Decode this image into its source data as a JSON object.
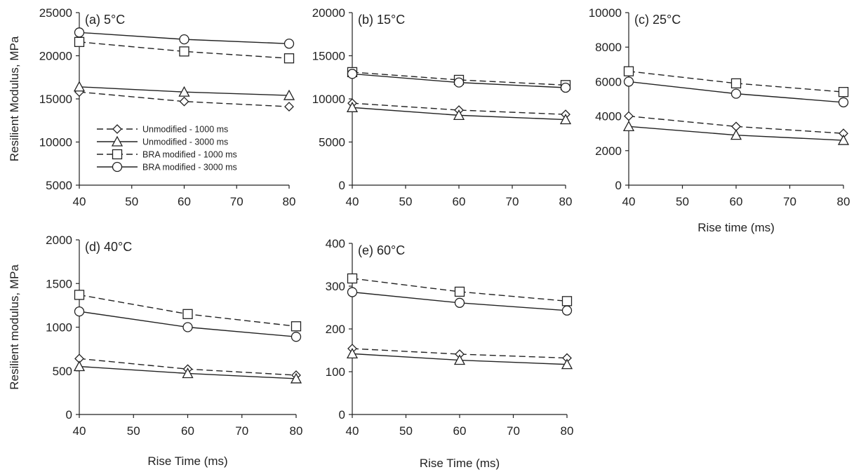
{
  "legend": [
    {
      "name": "Unmodified - 1000 ms",
      "marker": "diamond",
      "dash": "dashed"
    },
    {
      "name": "Unmodified - 3000 ms",
      "marker": "triangle",
      "dash": "solid"
    },
    {
      "name": "BRA modified - 1000 ms",
      "marker": "square",
      "dash": "dashed"
    },
    {
      "name": "BRA modified - 3000 ms",
      "marker": "circle",
      "dash": "solid"
    }
  ],
  "colors": {
    "line": "#222222",
    "marker_fill": "#ffffff"
  },
  "chart_data": [
    {
      "type": "line",
      "label": "(a) 5°C",
      "x": [
        40,
        60,
        80
      ],
      "xlim": [
        40,
        80
      ],
      "xticks": [
        40,
        50,
        60,
        70,
        80
      ],
      "ylim": [
        5000,
        25000
      ],
      "yticks": [
        5000,
        10000,
        15000,
        20000,
        25000
      ],
      "xlabel": "",
      "ylabel": "Resilient Modulus, MPa",
      "legend": "left-center",
      "series": [
        {
          "name": "Unmodified - 1000 ms",
          "values": [
            15800,
            14700,
            14100
          ]
        },
        {
          "name": "Unmodified - 3000 ms",
          "values": [
            16400,
            15800,
            15400
          ]
        },
        {
          "name": "BRA modified - 1000 ms",
          "values": [
            21600,
            20500,
            19700
          ]
        },
        {
          "name": "BRA modified - 3000 ms",
          "values": [
            22700,
            21900,
            21400
          ]
        }
      ]
    },
    {
      "type": "line",
      "label": "(b) 15°C",
      "x": [
        40,
        60,
        80
      ],
      "xlim": [
        40,
        80
      ],
      "xticks": [
        40,
        50,
        60,
        70,
        80
      ],
      "ylim": [
        0,
        20000
      ],
      "yticks": [
        0,
        5000,
        10000,
        15000,
        20000
      ],
      "xlabel": "",
      "ylabel": "",
      "series": [
        {
          "name": "Unmodified - 1000 ms",
          "values": [
            9500,
            8700,
            8200
          ]
        },
        {
          "name": "Unmodified - 3000 ms",
          "values": [
            9000,
            8100,
            7600
          ]
        },
        {
          "name": "BRA modified - 1000 ms",
          "values": [
            13100,
            12200,
            11600
          ]
        },
        {
          "name": "BRA modified - 3000 ms",
          "values": [
            12900,
            11900,
            11300
          ]
        }
      ]
    },
    {
      "type": "line",
      "label": "(c) 25°C",
      "x": [
        40,
        60,
        80
      ],
      "xlim": [
        40,
        80
      ],
      "xticks": [
        40,
        50,
        60,
        70,
        80
      ],
      "ylim": [
        0,
        10000
      ],
      "yticks": [
        0,
        2000,
        4000,
        6000,
        8000,
        10000
      ],
      "xlabel": "Rise time (ms)",
      "ylabel": "",
      "series": [
        {
          "name": "Unmodified - 1000 ms",
          "values": [
            4000,
            3400,
            3000
          ]
        },
        {
          "name": "Unmodified - 3000 ms",
          "values": [
            3400,
            2900,
            2600
          ]
        },
        {
          "name": "BRA modified - 1000 ms",
          "values": [
            6600,
            5900,
            5400
          ]
        },
        {
          "name": "BRA modified - 3000 ms",
          "values": [
            6000,
            5300,
            4800
          ]
        }
      ]
    },
    {
      "type": "line",
      "label": "(d) 40°C",
      "x": [
        40,
        60,
        80
      ],
      "xlim": [
        40,
        80
      ],
      "xticks": [
        40,
        50,
        60,
        70,
        80
      ],
      "ylim": [
        0,
        2000
      ],
      "yticks": [
        0,
        500,
        1000,
        1500,
        2000
      ],
      "xlabel": "Rise Time (ms)",
      "ylabel": "Resilient modulus, MPa",
      "series": [
        {
          "name": "Unmodified - 1000 ms",
          "values": [
            640,
            520,
            450
          ]
        },
        {
          "name": "Unmodified - 3000 ms",
          "values": [
            550,
            470,
            410
          ]
        },
        {
          "name": "BRA modified - 1000 ms",
          "values": [
            1370,
            1150,
            1010
          ]
        },
        {
          "name": "BRA modified - 3000 ms",
          "values": [
            1180,
            1000,
            890
          ]
        }
      ]
    },
    {
      "type": "line",
      "label": "(e) 60°C",
      "x": [
        40,
        60,
        80
      ],
      "xlim": [
        40,
        80
      ],
      "xticks": [
        40,
        50,
        60,
        70,
        80
      ],
      "ylim": [
        0,
        400
      ],
      "yticks": [
        0,
        100,
        200,
        300,
        400
      ],
      "xlabel": "Rise Time (ms)",
      "ylabel": "",
      "series": [
        {
          "name": "Unmodified - 1000 ms",
          "values": [
            154,
            141,
            132
          ]
        },
        {
          "name": "Unmodified - 3000 ms",
          "values": [
            142,
            127,
            117
          ]
        },
        {
          "name": "BRA modified - 1000 ms",
          "values": [
            318,
            287,
            265
          ]
        },
        {
          "name": "BRA modified - 3000 ms",
          "values": [
            286,
            261,
            243
          ]
        }
      ]
    }
  ]
}
